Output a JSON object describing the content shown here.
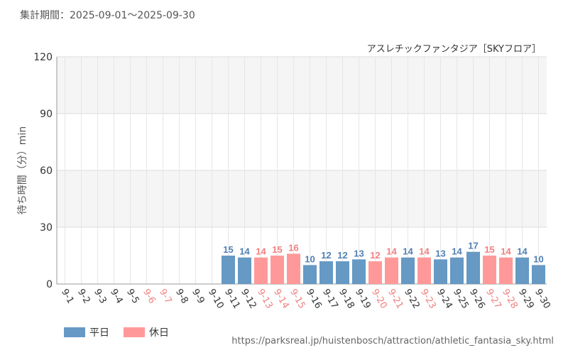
{
  "header": {
    "period": "集計期間：2025-09-01～2025-09-30"
  },
  "footer": {
    "url": "https://parksreal.jp/huistenbosch/attraction/athletic_fantasia_sky.html"
  },
  "colors": {
    "weekday": "#6699c4",
    "holiday": "#ff9999",
    "weekday_text": "#5080b4",
    "holiday_text": "#f08080",
    "grid": "#dddddd",
    "band": "#f5f5f5"
  },
  "chart_data": {
    "type": "bar",
    "title": "アスレチックファンタジア［SKYフロア］",
    "ylabel": "待ち時間（分）min",
    "xlabel": "",
    "ylim": [
      0,
      120
    ],
    "yticks": [
      0,
      30,
      60,
      90,
      120
    ],
    "grid": true,
    "legend_position": "bottom-left",
    "legend": [
      {
        "key": "weekday",
        "label": "平日"
      },
      {
        "key": "holiday",
        "label": "休日"
      }
    ],
    "categories": [
      "9-1",
      "9-2",
      "9-3",
      "9-4",
      "9-5",
      "9-6",
      "9-7",
      "9-8",
      "9-9",
      "9-10",
      "9-11",
      "9-12",
      "9-13",
      "9-14",
      "9-15",
      "9-16",
      "9-17",
      "9-18",
      "9-19",
      "9-20",
      "9-21",
      "9-22",
      "9-23",
      "9-24",
      "9-25",
      "9-26",
      "9-27",
      "9-28",
      "9-29",
      "9-30"
    ],
    "values": [
      null,
      null,
      null,
      null,
      null,
      null,
      null,
      null,
      null,
      null,
      15,
      14,
      14,
      15,
      16,
      10,
      12,
      12,
      13,
      12,
      14,
      14,
      14,
      13,
      14,
      17,
      15,
      14,
      14,
      10
    ],
    "day_types": [
      "weekday",
      "weekday",
      "weekday",
      "weekday",
      "weekday",
      "holiday",
      "holiday",
      "weekday",
      "weekday",
      "weekday",
      "weekday",
      "weekday",
      "holiday",
      "holiday",
      "holiday",
      "weekday",
      "weekday",
      "weekday",
      "weekday",
      "holiday",
      "holiday",
      "weekday",
      "holiday",
      "weekday",
      "weekday",
      "weekday",
      "holiday",
      "holiday",
      "weekday",
      "weekday"
    ]
  }
}
